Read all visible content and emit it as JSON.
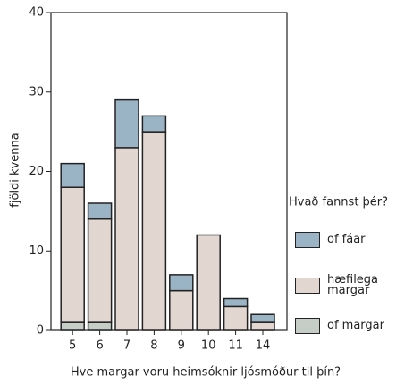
{
  "chart_data": {
    "type": "stacked_bar",
    "x_label": "Hve margar voru heimsóknir ljósmóður til þín?",
    "y_label": "fjöldi kvenna",
    "legend_title": "Hvað fannst þér?",
    "categories": [
      "5",
      "6",
      "7",
      "8",
      "9",
      "10",
      "11",
      "14"
    ],
    "series": [
      {
        "name": "of margar",
        "color": "#c5cdc7",
        "values": [
          1,
          1,
          0,
          0,
          0,
          0,
          0,
          0
        ]
      },
      {
        "name": "hæfilega margar",
        "color": "#e2d6d0",
        "values": [
          17,
          13,
          23,
          25,
          5,
          12,
          3,
          1
        ]
      },
      {
        "name": "of fáar",
        "color": "#9bb4c5",
        "values": [
          3,
          2,
          6,
          2,
          2,
          0,
          1,
          1
        ]
      }
    ],
    "ylim": [
      0,
      40
    ],
    "yticks": [
      0,
      10,
      20,
      30,
      40
    ],
    "legend": "right"
  }
}
